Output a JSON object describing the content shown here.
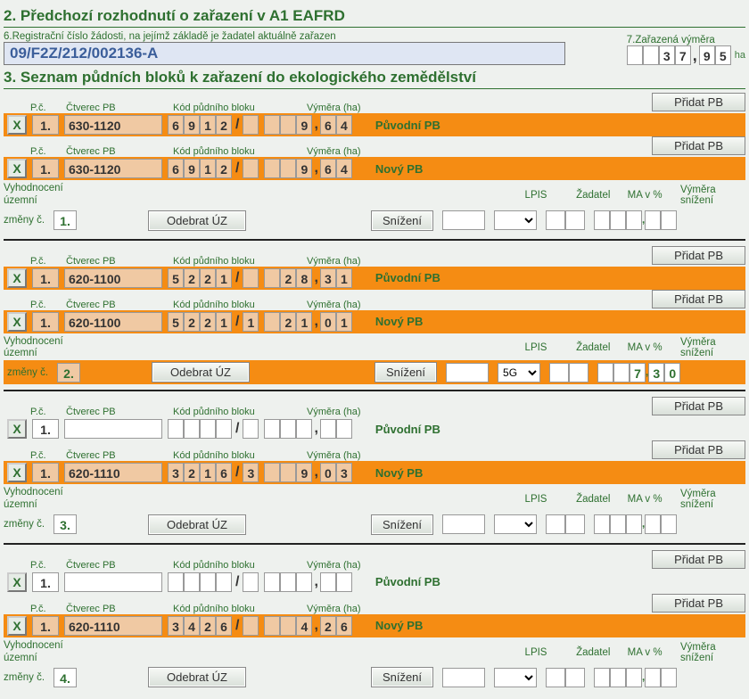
{
  "colors": {
    "green_text": "#2e7030",
    "orange": "#f58c13",
    "orange_cell": "#f0c9a3",
    "red_cell": "#e8c3b0",
    "bg": "#eef1ee"
  },
  "section2": {
    "title": "2. Předchozí rozhodnutí o zařazení v A1 EAFRD",
    "reg_label": "6.Registrační číslo žádosti, na jejímž základě je žadatel aktuálně zařazen",
    "reg_value": "09/F2Z/212/002136-A",
    "area_label": "7.Zařazená výměra",
    "area_int": [
      "",
      "",
      "3",
      "7"
    ],
    "area_dec": [
      "9",
      "5"
    ],
    "ha": "ha"
  },
  "section3": {
    "title": "3. Seznam půdních bloků k zařazení do ekologického zemědělství"
  },
  "labels": {
    "pc": "P.č.",
    "ctverec": "Čtverec PB",
    "kod": "Kód půdního bloku",
    "vymera": "Výměra (ha)",
    "puvodni": "Původní PB",
    "novy": "Nový PB",
    "pridat": "Přidat PB",
    "vyhod": "Vyhodnocení územní",
    "zmeny": "změny č.",
    "odebrat": "Odebrat ÚZ",
    "snizeni": "Snížení",
    "lpis": "LPIS",
    "zadatel": "Žadatel",
    "mav": "MA v %",
    "vym_snizeni": "Výměra snížení"
  },
  "groups": [
    {
      "uz_num": "1.",
      "eval_orange": false,
      "orig": {
        "orange": true,
        "pc": "1.",
        "sq": "630-1120",
        "kod": [
          "6",
          "9",
          "1",
          "2"
        ],
        "kod2": [
          ""
        ],
        "vym_int": [
          "",
          "",
          "9"
        ],
        "vym_dec": [
          "6",
          "4"
        ]
      },
      "novy": {
        "orange": true,
        "pc": "1.",
        "sq": "630-1120",
        "kod": [
          "6",
          "9",
          "1",
          "2"
        ],
        "kod2": [
          ""
        ],
        "vym_int": [
          "",
          "",
          "9"
        ],
        "vym_dec": [
          "6",
          "4"
        ]
      },
      "lpis": "",
      "zad": "",
      "zad_options": [
        ""
      ],
      "ma": [
        "",
        ""
      ],
      "sn_int": [
        "",
        "",
        ""
      ],
      "sn_dec": [
        "",
        ""
      ]
    },
    {
      "uz_num": "2.",
      "eval_orange": true,
      "orig": {
        "orange": true,
        "pc": "1.",
        "sq": "620-1100",
        "kod": [
          "5",
          "2",
          "2",
          "1"
        ],
        "kod2": [
          ""
        ],
        "vym_int": [
          "",
          "2",
          "8"
        ],
        "vym_dec": [
          "3",
          "1"
        ]
      },
      "novy": {
        "orange": true,
        "pc": "1.",
        "sq": "620-1100",
        "kod": [
          "5",
          "2",
          "2",
          "1"
        ],
        "kod2": [
          "1"
        ],
        "vym_int": [
          "",
          "2",
          "1"
        ],
        "vym_dec": [
          "0",
          "1"
        ]
      },
      "lpis": "",
      "zad": "5G",
      "zad_options": [
        "5G"
      ],
      "ma": [
        "",
        ""
      ],
      "sn_int": [
        "",
        "",
        "7"
      ],
      "sn_dec": [
        "3",
        "0"
      ],
      "sn_red": true
    },
    {
      "uz_num": "3.",
      "eval_orange": false,
      "orig": {
        "orange": false,
        "pc": "1.",
        "sq": "",
        "kod": [
          "",
          "",
          "",
          ""
        ],
        "kod2": [
          ""
        ],
        "vym_int": [
          "",
          "",
          ""
        ],
        "vym_dec": [
          "",
          ""
        ]
      },
      "novy": {
        "orange": true,
        "pc": "1.",
        "sq": "620-1110",
        "kod": [
          "3",
          "2",
          "1",
          "6"
        ],
        "kod2": [
          "3"
        ],
        "vym_int": [
          "",
          "",
          "9"
        ],
        "vym_dec": [
          "0",
          "3"
        ]
      },
      "lpis": "",
      "zad": "",
      "zad_options": [
        ""
      ],
      "ma": [
        "",
        ""
      ],
      "sn_int": [
        "",
        "",
        ""
      ],
      "sn_dec": [
        "",
        ""
      ]
    },
    {
      "uz_num": "4.",
      "eval_orange": false,
      "orig": {
        "orange": false,
        "pc": "1.",
        "sq": "",
        "kod": [
          "",
          "",
          "",
          ""
        ],
        "kod2": [
          ""
        ],
        "vym_int": [
          "",
          "",
          ""
        ],
        "vym_dec": [
          "",
          ""
        ]
      },
      "novy": {
        "orange": true,
        "pc": "1.",
        "sq": "620-1110",
        "kod": [
          "3",
          "4",
          "2",
          "6"
        ],
        "kod2": [
          ""
        ],
        "vym_int": [
          "",
          "",
          "4"
        ],
        "vym_dec": [
          "2",
          "6"
        ]
      },
      "lpis": "",
      "zad": "",
      "zad_options": [
        ""
      ],
      "ma": [
        "",
        ""
      ],
      "sn_int": [
        "",
        "",
        ""
      ],
      "sn_dec": [
        "",
        ""
      ]
    }
  ]
}
